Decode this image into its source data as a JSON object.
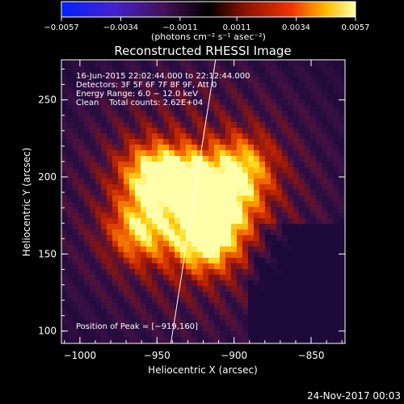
{
  "chart_data": {
    "type": "heatmap",
    "title": "Reconstructed RHESSI Image",
    "xlabel": "Heliocentric X (arcsec)",
    "ylabel": "Heliocentric Y (arcsec)",
    "xlim": [
      -1012,
      -828
    ],
    "ylim": [
      92,
      276
    ],
    "x_ticks": [
      -1000,
      -950,
      -900,
      -850
    ],
    "x_tick_labels": [
      "−1000",
      "−950",
      "−900",
      "−850"
    ],
    "y_ticks": [
      100,
      150,
      200,
      250
    ],
    "y_tick_labels": [
      "100",
      "150",
      "200",
      "250"
    ],
    "colorbar": {
      "min": -0.0057,
      "max": 0.0057,
      "ticks": [
        -0.0057,
        -0.0034,
        -0.0011,
        0.0011,
        0.0034,
        0.0057
      ],
      "tick_labels": [
        "−0.0057",
        "−0.0034",
        "−0.0011",
        "0.0011",
        "0.0034",
        "0.0057"
      ],
      "unit_label": "(photons cm⁻² s⁻¹ asec⁻²)"
    },
    "annotations": [
      "16-Jun-2015 22:02:44.000 to 22:12:44.000",
      "Detectors: 3F 5F 6F 7F 8F 9F, Att 0",
      "Energy Range: 6.0 − 12.0 keV",
      "Clean    Total counts: 2.62E+04"
    ],
    "peak_label": "Position of Peak = [−919,160]",
    "peak": [
      -919,
      160
    ],
    "sources": [
      {
        "x": -930,
        "y": 195,
        "peak_intensity": 0.0057
      },
      {
        "x": -919,
        "y": 160,
        "peak_intensity": 0.0057
      },
      {
        "x": -953,
        "y": 201,
        "peak_intensity": 0.0045
      },
      {
        "x": -896,
        "y": 205,
        "peak_intensity": 0.004
      },
      {
        "x": -960,
        "y": 166,
        "peak_intensity": 0.004
      },
      {
        "x": -905,
        "y": 180,
        "peak_intensity": 0.0034
      }
    ],
    "limb_line": [
      [
        -941,
        92
      ],
      [
        -912,
        276
      ]
    ]
  },
  "footer": {
    "timestamp": "24-Nov-2017 00:03"
  },
  "colors": {
    "background": "#000000",
    "axes": "#ffffff"
  }
}
